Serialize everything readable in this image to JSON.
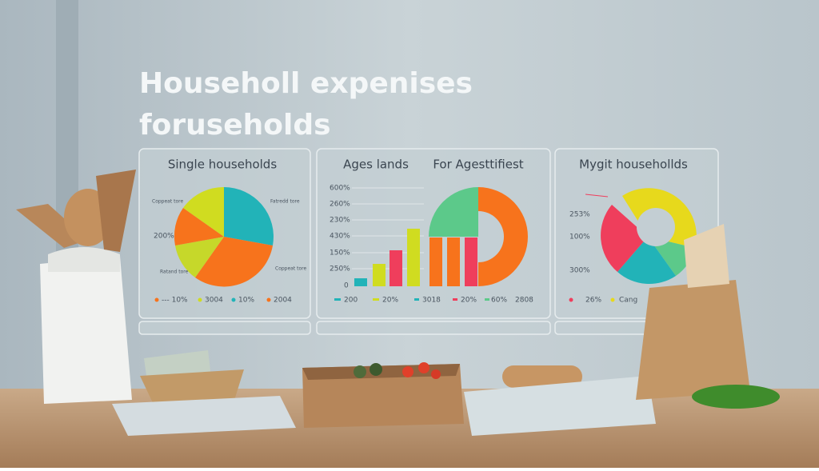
{
  "title": [
    "Householl expenises",
    "foruseholds"
  ],
  "panels": [
    {
      "title": "Single households",
      "labels": [
        "Coppeat tore",
        "Fatredd tore",
        "200%",
        "Ratand tore",
        "Coppeat tore"
      ],
      "legend": [
        "--- 10%",
        "3004",
        "10%",
        "2004"
      ]
    },
    {
      "title": "Ages lands",
      "subtitle": "For Agesttifiest",
      "axis": [
        "600%",
        "260%",
        "230%",
        "430%",
        "150%",
        "250%",
        "0"
      ],
      "legend": [
        "200",
        "20%",
        "3018",
        "20%",
        "60%",
        "2808"
      ]
    },
    {
      "title": "Mygit househollds",
      "labels": [
        "253%",
        "100%",
        "300%"
      ],
      "legend": [
        "26%",
        "Cang"
      ]
    }
  ]
}
